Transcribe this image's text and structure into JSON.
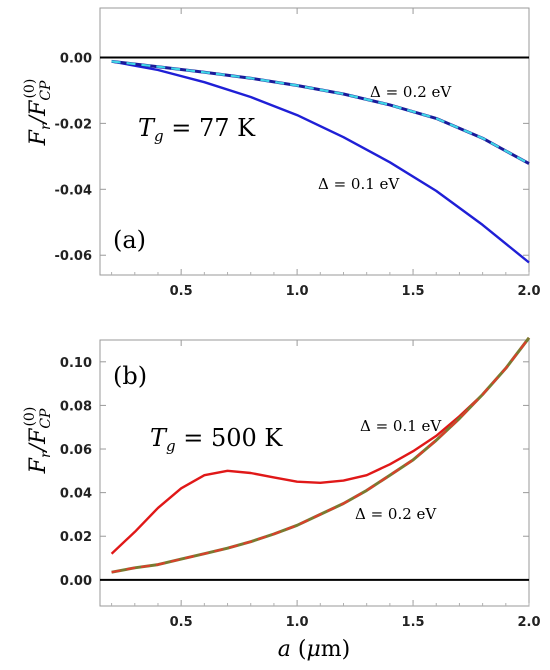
{
  "chart_data": [
    {
      "type": "line",
      "panel_label": "(a)",
      "ylabel": "F_r / F_CP^(0)",
      "xlabel": "",
      "xlim": [
        0.15,
        2.0
      ],
      "ylim": [
        -0.066,
        0.015
      ],
      "x_ticks": [
        0.5,
        1.0,
        1.5,
        2.0
      ],
      "x_tick_labels": [
        "0.5",
        "1.0",
        "1.5",
        "2.0"
      ],
      "y_ticks": [
        0.0,
        -0.02,
        -0.04,
        -0.06
      ],
      "y_tick_labels": [
        "0.00",
        "-0.02",
        "-0.04",
        "-0.06"
      ],
      "annotations": {
        "temperature": {
          "prefix": "T",
          "subscript": "g",
          "value": " = 77 K"
        },
        "series1": "Δ = 0.2 eV",
        "series2": "Δ = 0.1 eV"
      },
      "series": [
        {
          "name": "Δ = 0.1 eV",
          "color": "#1f1fd6",
          "style": "solid",
          "x": [
            0.2,
            0.4,
            0.6,
            0.8,
            1.0,
            1.2,
            1.4,
            1.6,
            1.8,
            2.0
          ],
          "y": [
            -0.0012,
            -0.0038,
            -0.0075,
            -0.012,
            -0.0175,
            -0.0242,
            -0.0318,
            -0.0405,
            -0.0508,
            -0.0622
          ]
        },
        {
          "name": "Δ = 0.2 eV",
          "color": "#1a1a9a",
          "overlay_color": "#3fd6e6",
          "style": "dashed",
          "x": [
            0.2,
            0.4,
            0.6,
            0.8,
            1.0,
            1.2,
            1.4,
            1.6,
            1.8,
            2.0
          ],
          "y": [
            -0.0012,
            -0.0028,
            -0.0045,
            -0.0063,
            -0.0085,
            -0.0111,
            -0.0144,
            -0.0185,
            -0.0245,
            -0.0322
          ]
        }
      ],
      "reference_line": 0.0
    },
    {
      "type": "line",
      "panel_label": "(b)",
      "ylabel": "F_r / F_CP^(0)",
      "xlabel": "a (μm)",
      "xlim": [
        0.15,
        2.0
      ],
      "ylim": [
        -0.012,
        0.11
      ],
      "x_ticks": [
        0.5,
        1.0,
        1.5,
        2.0
      ],
      "x_tick_labels": [
        "0.5",
        "1.0",
        "1.5",
        "2.0"
      ],
      "y_ticks": [
        0.0,
        0.02,
        0.04,
        0.06,
        0.08,
        0.1
      ],
      "y_tick_labels": [
        "0.00",
        "0.02",
        "0.04",
        "0.06",
        "0.08",
        "0.10"
      ],
      "annotations": {
        "temperature": {
          "prefix": "T",
          "subscript": "g",
          "value": " = 500 K"
        },
        "series1": "Δ = 0.1 eV",
        "series2": "Δ = 0.2 eV"
      },
      "series": [
        {
          "name": "Δ = 0.1 eV",
          "color": "#e01818",
          "style": "solid",
          "x": [
            0.2,
            0.3,
            0.4,
            0.5,
            0.6,
            0.7,
            0.8,
            0.9,
            1.0,
            1.1,
            1.2,
            1.3,
            1.4,
            1.5,
            1.6,
            1.7,
            1.8,
            1.9,
            2.0
          ],
          "y": [
            0.012,
            0.022,
            0.033,
            0.042,
            0.048,
            0.05,
            0.049,
            0.047,
            0.045,
            0.0445,
            0.0455,
            0.048,
            0.053,
            0.059,
            0.066,
            0.075,
            0.085,
            0.097,
            0.111
          ]
        },
        {
          "name": "Δ = 0.2 eV",
          "color": "#7a7a30",
          "overlay_color": "#d8402c",
          "style": "dashed",
          "x": [
            0.2,
            0.3,
            0.4,
            0.5,
            0.6,
            0.7,
            0.8,
            0.9,
            1.0,
            1.1,
            1.2,
            1.3,
            1.4,
            1.5,
            1.6,
            1.7,
            1.8,
            1.9,
            2.0
          ],
          "y": [
            0.0035,
            0.0055,
            0.007,
            0.0095,
            0.012,
            0.0145,
            0.0175,
            0.021,
            0.025,
            0.03,
            0.035,
            0.041,
            0.048,
            0.055,
            0.064,
            0.074,
            0.085,
            0.097,
            0.111
          ]
        }
      ],
      "reference_line": 0.0
    }
  ]
}
